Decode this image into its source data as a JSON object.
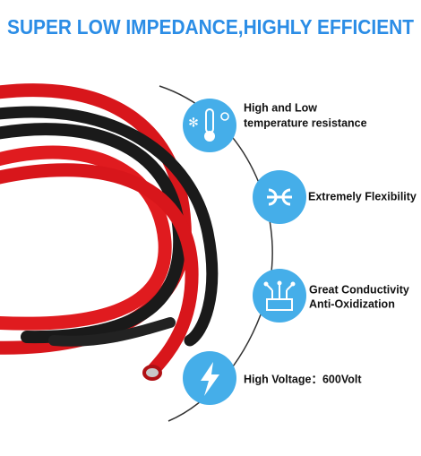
{
  "header": {
    "title": "SUPER LOW IMPEDANCE,HIGHLY EFFICIENT"
  },
  "features": [
    {
      "lines": [
        "High and Low",
        "temperature resistance"
      ]
    },
    {
      "lines": [
        "Extremely Flexibility"
      ]
    },
    {
      "lines": [
        "Great Conductivity",
        "Anti-Oxidization"
      ]
    },
    {
      "lines": [
        "High Voltage：600Volt"
      ]
    }
  ]
}
